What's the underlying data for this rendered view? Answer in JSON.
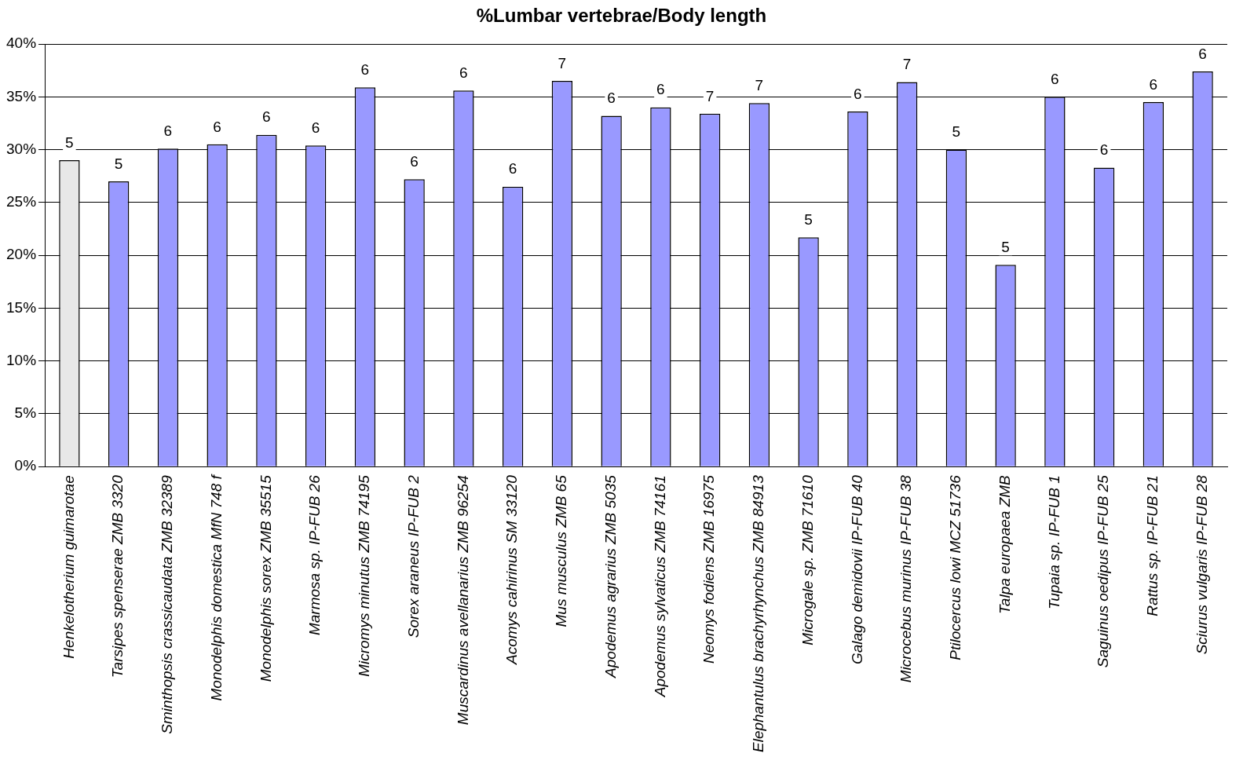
{
  "chart_data": {
    "type": "bar",
    "title": "%Lumbar vertebrae/Body length",
    "categories": [
      "Henkelotherium guimarotae",
      "Tarsipes spenserae ZMB 3320",
      "Sminthopsis crassicaudata ZMB 32389",
      "Monodelphis domestica MfN 748 f",
      "Monodelphis sorex ZMB 35515",
      "Marmosa sp. IP-FUB 26",
      "Micromys minutus ZMB 74195",
      "Sorex araneus IP-FUB 2",
      "Muscardinus avellanarius ZMB 96254",
      "Acomys cahirinus SM 33120",
      "Mus musculus ZMB 65",
      "Apodemus agrarius ZMB 5035",
      "Apodemus sylvaticus ZMB 74161",
      "Neomys fodiens ZMB 16975",
      "Elephantulus brachyrhynchus ZMB 84913",
      "Microgale sp. ZMB 71610",
      "Galago demidovii IP-FUB 40",
      "Microcebus murinus IP-FUB 38",
      "Ptilocercus lowi MCZ 51736",
      "Talpa europaea ZMB",
      "Tupaia sp. IP-FUB 1",
      "Saguinus oedipus IP-FUB 25",
      "Rattus sp. IP-FUB 21",
      "Sciurus vulgaris IP-FUB 28"
    ],
    "values": [
      29,
      27,
      30.1,
      30.5,
      31.4,
      30.4,
      35.9,
      27.2,
      35.6,
      26.5,
      36.5,
      33.2,
      34,
      33.4,
      34.4,
      21.7,
      33.6,
      36.4,
      30,
      19.1,
      35,
      28.3,
      34.5,
      37.4
    ],
    "annotations": [
      {
        "text": "5",
        "x": "Henkelotherium guimarotae",
        "y": 29
      },
      {
        "text": "5",
        "x": "Tarsipes spenserae ZMB 3320",
        "y": 27
      },
      {
        "text": "6",
        "x": "Sminthopsis crassicaudata ZMB 32389",
        "y": 30.1
      },
      {
        "text": "6",
        "x": "Monodelphis domestica MfN 748 f",
        "y": 30.5
      },
      {
        "text": "6",
        "x": "Monodelphis sorex ZMB 35515",
        "y": 31.4
      },
      {
        "text": "6",
        "x": "Marmosa sp. IP-FUB 26",
        "y": 30.4
      },
      {
        "text": "6",
        "x": "Micromys minutus ZMB 74195",
        "y": 35.9
      },
      {
        "text": "6",
        "x": "Sorex araneus IP-FUB 2",
        "y": 27.2
      },
      {
        "text": "6",
        "x": "Muscardinus avellanarius ZMB 96254",
        "y": 35.6
      },
      {
        "text": "6",
        "x": "Acomys cahirinus SM 33120",
        "y": 26.5
      },
      {
        "text": "7",
        "x": "Mus musculus ZMB 65",
        "y": 36.5
      },
      {
        "text": "6",
        "x": "Apodemus agrarius ZMB 5035",
        "y": 33.2
      },
      {
        "text": "6",
        "x": "Apodemus sylvaticus ZMB 74161",
        "y": 34
      },
      {
        "text": "7",
        "x": "Neomys fodiens ZMB 16975",
        "y": 33.4
      },
      {
        "text": "7",
        "x": "Elephantulus brachyrhynchus ZMB 84913",
        "y": 34.4
      },
      {
        "text": "5",
        "x": "Microgale sp. ZMB 71610",
        "y": 21.7
      },
      {
        "text": "6",
        "x": "Galago demidovii IP-FUB 40",
        "y": 33.6
      },
      {
        "text": "7",
        "x": "Microcebus murinus IP-FUB 38",
        "y": 36.4
      },
      {
        "text": "5",
        "x": "Ptilocercus lowi MCZ 51736",
        "y": 30
      },
      {
        "text": "5",
        "x": "Talpa europaea ZMB",
        "y": 19.1
      },
      {
        "text": "6",
        "x": "Tupaia sp. IP-FUB 1",
        "y": 35
      },
      {
        "text": "6",
        "x": "Saguinus oedipus IP-FUB 25",
        "y": 28.3
      },
      {
        "text": "6",
        "x": "Rattus sp. IP-FUB 21",
        "y": 34.5
      },
      {
        "text": "6",
        "x": "Sciurus vulgaris IP-FUB 28",
        "y": 37.4
      }
    ],
    "colors": [
      "#e8e8e8",
      "#9999ff",
      "#9999ff",
      "#9999ff",
      "#9999ff",
      "#9999ff",
      "#9999ff",
      "#9999ff",
      "#9999ff",
      "#9999ff",
      "#9999ff",
      "#9999ff",
      "#9999ff",
      "#9999ff",
      "#9999ff",
      "#9999ff",
      "#9999ff",
      "#9999ff",
      "#9999ff",
      "#9999ff",
      "#9999ff",
      "#9999ff",
      "#9999ff",
      "#9999ff"
    ],
    "ylim": [
      0,
      40
    ],
    "yticks": [
      {
        "value": 0,
        "label": "0%"
      },
      {
        "value": 5,
        "label": "5%"
      },
      {
        "value": 10,
        "label": "10%"
      },
      {
        "value": 15,
        "label": "15%"
      },
      {
        "value": 20,
        "label": "20%"
      },
      {
        "value": 25,
        "label": "25%"
      },
      {
        "value": 30,
        "label": "30%"
      },
      {
        "value": 35,
        "label": "35%"
      },
      {
        "value": 40,
        "label": "40%"
      }
    ],
    "grid": "y",
    "legend": false
  }
}
